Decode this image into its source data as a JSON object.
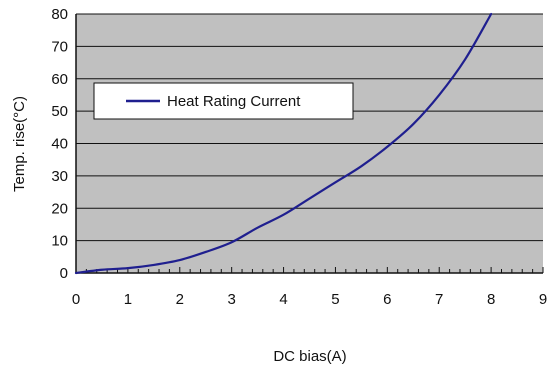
{
  "chart_data": {
    "type": "line",
    "xlabel": "DC bias(A)",
    "ylabel": "Temp. rise(°C)",
    "xlim": [
      0,
      9
    ],
    "ylim": [
      0,
      80
    ],
    "xticks": [
      "0",
      "1",
      "2",
      "3",
      "4",
      "5",
      "6",
      "7",
      "8",
      "9"
    ],
    "yticks": [
      "0",
      "10",
      "20",
      "30",
      "40",
      "50",
      "60",
      "70",
      "80"
    ],
    "grid": "horizontal",
    "legend_position": "upper-left",
    "plot_background": "#c0c0c0",
    "series": [
      {
        "name": "Heat Rating Current",
        "color": "#1f1f8f",
        "x": [
          0,
          0.5,
          1,
          1.5,
          2,
          2.5,
          3,
          3.5,
          4,
          4.5,
          5,
          5.5,
          6,
          6.5,
          7,
          7.5,
          8
        ],
        "y": [
          0,
          1,
          1.5,
          2.5,
          4,
          6.5,
          9.5,
          14,
          18,
          23,
          28,
          33,
          39,
          46,
          55,
          66,
          80
        ]
      }
    ]
  }
}
